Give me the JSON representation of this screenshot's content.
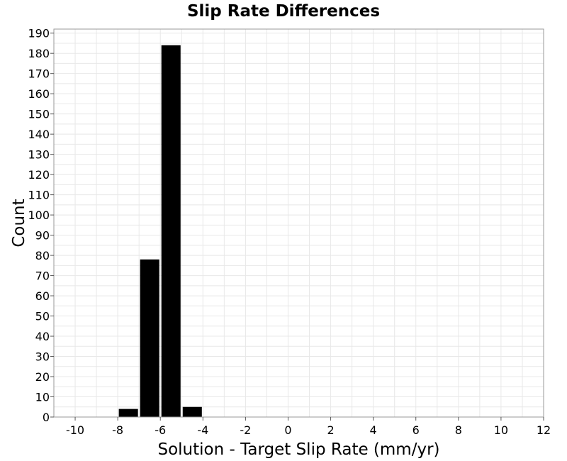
{
  "chart_data": {
    "type": "bar",
    "title": "Slip Rate Differences",
    "xlabel": "Solution - Target Slip Rate (mm/yr)",
    "ylabel": "Count",
    "xlim": [
      -11,
      12
    ],
    "ylim": [
      0,
      192
    ],
    "xticks": [
      -10,
      -8,
      -6,
      -4,
      -2,
      0,
      2,
      4,
      6,
      8,
      10,
      12
    ],
    "yticks": [
      0,
      10,
      20,
      30,
      40,
      50,
      60,
      70,
      80,
      90,
      100,
      110,
      120,
      130,
      140,
      150,
      160,
      170,
      180,
      190
    ],
    "grid": true,
    "bin_width": 1,
    "bins": [
      {
        "x": -7.5,
        "count": 4
      },
      {
        "x": -6.5,
        "count": 78
      },
      {
        "x": -5.5,
        "count": 184
      },
      {
        "x": -4.5,
        "count": 5
      }
    ],
    "bar_color": "#000000"
  }
}
